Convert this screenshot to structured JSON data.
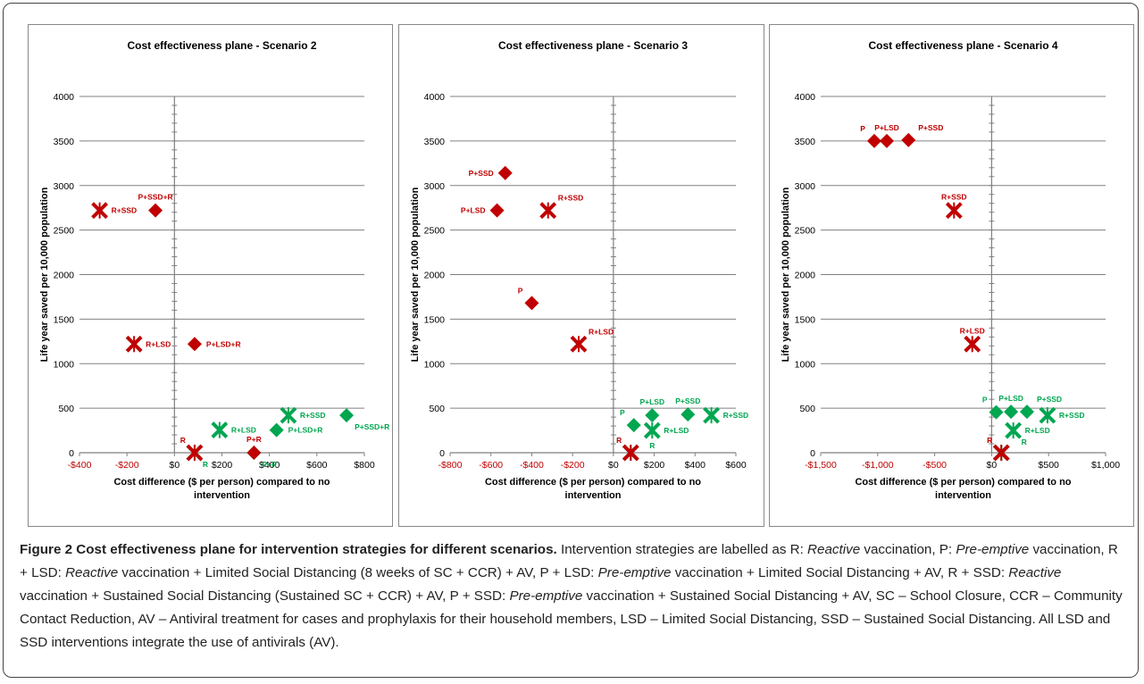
{
  "colors": {
    "red": "#c00000",
    "green": "#00a650",
    "axis": "#808080",
    "grid": "#808080"
  },
  "caption": {
    "title": "Figure 2 Cost effectiveness plane for intervention strategies for different scenarios.",
    "text_parts": [
      {
        "t": " Intervention strategies are labelled as R: "
      },
      {
        "t": "Reactive",
        "i": true
      },
      {
        "t": " vaccination, P: "
      },
      {
        "t": "Pre-emptive",
        "i": true
      },
      {
        "t": " vaccination, R + LSD: "
      },
      {
        "t": "Reactive",
        "i": true
      },
      {
        "t": " vaccination + Limited Social Distancing (8 weeks of SC + CCR) + AV, P + LSD: "
      },
      {
        "t": "Pre-emptive",
        "i": true
      },
      {
        "t": " vaccination + Limited Social Distancing + AV, R + SSD: "
      },
      {
        "t": "Reactive",
        "i": true
      },
      {
        "t": " vaccination + Sustained Social Distancing (Sustained SC + CCR) + AV, P + SSD: "
      },
      {
        "t": "Pre-emptive",
        "i": true
      },
      {
        "t": " vaccination + Sustained Social Distancing + AV, SC – School Closure, CCR – Community Contact Reduction, AV – Antiviral treatment for cases and prophylaxis for their household members, LSD – Limited Social Distancing, SSD – Sustained Social Distancing. All LSD and SSD interventions integrate the use of antivirals (AV)."
      }
    ]
  },
  "chart_data": [
    {
      "type": "scatter",
      "title": "Cost effectiveness plane - Scenario 2",
      "xlabel": "Cost difference ($ per person) compared to no intervention",
      "ylabel": "Life year saved per 10,000 population",
      "xlim": [
        -400,
        800
      ],
      "ylim": [
        0,
        4000
      ],
      "x_ticks": [
        -400,
        -200,
        0,
        200,
        400,
        600,
        800
      ],
      "x_tick_labels": [
        "-$400",
        "-$200",
        "$0",
        "$200",
        "$400",
        "$600",
        "$800"
      ],
      "y_ticks": [
        0,
        500,
        1000,
        1500,
        2000,
        2500,
        3000,
        3500,
        4000
      ],
      "y_tick_labels": [
        "0",
        "500",
        "1000",
        "1500",
        "2000",
        "2500",
        "3000",
        "3500",
        "4000"
      ],
      "grid": true,
      "points": [
        {
          "label": "R+SSD",
          "x": -315,
          "y": 2720,
          "marker": "x",
          "color": "red",
          "lpos": "right"
        },
        {
          "label": "P+SSD+R",
          "x": -80,
          "y": 2720,
          "marker": "diamond",
          "color": "red",
          "lpos": "above"
        },
        {
          "label": "R+LSD",
          "x": -170,
          "y": 1220,
          "marker": "x",
          "color": "red",
          "lpos": "right"
        },
        {
          "label": "P+LSD+R",
          "x": 85,
          "y": 1220,
          "marker": "diamond",
          "color": "red",
          "lpos": "right"
        },
        {
          "label": "R",
          "x": 85,
          "y": 0,
          "marker": "x",
          "color": "red",
          "lpos": "upleft"
        },
        {
          "label": "P+R",
          "x": 335,
          "y": 0,
          "marker": "diamond",
          "color": "red",
          "lpos": "above"
        },
        {
          "label": "R",
          "x": 85,
          "y": 0,
          "marker": "x",
          "color": "green",
          "lpos": "downright"
        },
        {
          "label": "P+R",
          "x": 335,
          "y": 0,
          "marker": "diamond",
          "color": "green",
          "lpos": "downright"
        },
        {
          "label": "R+LSD",
          "x": 190,
          "y": 255,
          "marker": "x",
          "color": "green",
          "lpos": "right"
        },
        {
          "label": "R+SSD",
          "x": 480,
          "y": 420,
          "marker": "x",
          "color": "green",
          "lpos": "right"
        },
        {
          "label": "P+LSD+R",
          "x": 430,
          "y": 255,
          "marker": "diamond",
          "color": "green",
          "lpos": "right"
        },
        {
          "label": "P+SSD+R",
          "x": 725,
          "y": 420,
          "marker": "diamond",
          "color": "green",
          "lpos": "downright"
        }
      ]
    },
    {
      "type": "scatter",
      "title": "Cost effectiveness plane - Scenario 3",
      "xlabel": "Cost difference ($ per person) compared to no intervention",
      "ylabel": "Life year saved per 10,000 population",
      "xlim": [
        -800,
        600
      ],
      "ylim": [
        0,
        4000
      ],
      "x_ticks": [
        -800,
        -600,
        -400,
        -200,
        0,
        200,
        400,
        600
      ],
      "x_tick_labels": [
        "-$800",
        "-$600",
        "-$400",
        "-$200",
        "$0",
        "$200",
        "$400",
        "$600"
      ],
      "y_ticks": [
        0,
        500,
        1000,
        1500,
        2000,
        2500,
        3000,
        3500,
        4000
      ],
      "y_tick_labels": [
        "0",
        "500",
        "1000",
        "1500",
        "2000",
        "2500",
        "3000",
        "3500",
        "4000"
      ],
      "grid": true,
      "points": [
        {
          "label": "P+SSD",
          "x": -530,
          "y": 3140,
          "marker": "diamond",
          "color": "red",
          "lpos": "left"
        },
        {
          "label": "P+LSD",
          "x": -570,
          "y": 2720,
          "marker": "diamond",
          "color": "red",
          "lpos": "left"
        },
        {
          "label": "R+SSD",
          "x": -320,
          "y": 2720,
          "marker": "x",
          "color": "red",
          "lpos": "upright"
        },
        {
          "label": "P",
          "x": -400,
          "y": 1680,
          "marker": "diamond",
          "color": "red",
          "lpos": "upleft"
        },
        {
          "label": "R+LSD",
          "x": -170,
          "y": 1220,
          "marker": "x",
          "color": "red",
          "lpos": "upright"
        },
        {
          "label": "R",
          "x": 85,
          "y": 0,
          "marker": "x",
          "color": "red",
          "lpos": "upleft"
        },
        {
          "label": "R",
          "x": 85,
          "y": 0,
          "marker": "x",
          "color": "green",
          "lpos": "none"
        },
        {
          "label": "P",
          "x": 100,
          "y": 310,
          "marker": "diamond",
          "color": "green",
          "lpos": "upleft"
        },
        {
          "label": "P+LSD",
          "x": 190,
          "y": 420,
          "marker": "diamond",
          "color": "green",
          "lpos": "above"
        },
        {
          "label": "R",
          "x": 190,
          "y": 250,
          "marker": "x",
          "color": "green",
          "lpos": "below"
        },
        {
          "label": "R+LSD",
          "x": 190,
          "y": 250,
          "marker": "x",
          "color": "green",
          "lpos": "right"
        },
        {
          "label": "P+SSD",
          "x": 365,
          "y": 430,
          "marker": "diamond",
          "color": "green",
          "lpos": "above"
        },
        {
          "label": "R+SSD",
          "x": 480,
          "y": 420,
          "marker": "x",
          "color": "green",
          "lpos": "right"
        }
      ]
    },
    {
      "type": "scatter",
      "title": "Cost effectiveness plane - Scenario 4",
      "xlabel": "Cost difference ($ per person) compared to no intervention",
      "ylabel": "Life year saved per 10,000 population",
      "xlim": [
        -1500,
        1000
      ],
      "ylim": [
        0,
        4000
      ],
      "x_ticks": [
        -1500,
        -1000,
        -500,
        0,
        500,
        1000
      ],
      "x_tick_labels": [
        "-$1,500",
        "-$1,000",
        "-$500",
        "$0",
        "$500",
        "$1,000"
      ],
      "y_ticks": [
        0,
        500,
        1000,
        1500,
        2000,
        2500,
        3000,
        3500,
        4000
      ],
      "y_tick_labels": [
        "0",
        "500",
        "1000",
        "1500",
        "2000",
        "2500",
        "3000",
        "3500",
        "4000"
      ],
      "grid": true,
      "points": [
        {
          "label": "P",
          "x": -1030,
          "y": 3500,
          "marker": "diamond",
          "color": "red",
          "lpos": "upleft"
        },
        {
          "label": "P+LSD",
          "x": -920,
          "y": 3500,
          "marker": "diamond",
          "color": "red",
          "lpos": "above"
        },
        {
          "label": "P+SSD",
          "x": -730,
          "y": 3510,
          "marker": "diamond",
          "color": "red",
          "lpos": "upright"
        },
        {
          "label": "R+SSD",
          "x": -330,
          "y": 2720,
          "marker": "x",
          "color": "red",
          "lpos": "above"
        },
        {
          "label": "R+LSD",
          "x": -170,
          "y": 1220,
          "marker": "x",
          "color": "red",
          "lpos": "above"
        },
        {
          "label": "R",
          "x": 85,
          "y": 0,
          "marker": "x",
          "color": "red",
          "lpos": "upleft"
        },
        {
          "label": "R",
          "x": 85,
          "y": 0,
          "marker": "x",
          "color": "green",
          "lpos": "none"
        },
        {
          "label": "P",
          "x": 40,
          "y": 455,
          "marker": "diamond",
          "color": "green",
          "lpos": "upleft"
        },
        {
          "label": "P+LSD",
          "x": 170,
          "y": 460,
          "marker": "diamond",
          "color": "green",
          "lpos": "above"
        },
        {
          "label": "P+SSD",
          "x": 310,
          "y": 460,
          "marker": "diamond",
          "color": "green",
          "lpos": "upright"
        },
        {
          "label": "R",
          "x": 190,
          "y": 250,
          "marker": "x",
          "color": "green",
          "lpos": "downright"
        },
        {
          "label": "R+LSD",
          "x": 190,
          "y": 250,
          "marker": "x",
          "color": "green",
          "lpos": "right"
        },
        {
          "label": "R+SSD",
          "x": 490,
          "y": 420,
          "marker": "x",
          "color": "green",
          "lpos": "right"
        }
      ]
    }
  ]
}
